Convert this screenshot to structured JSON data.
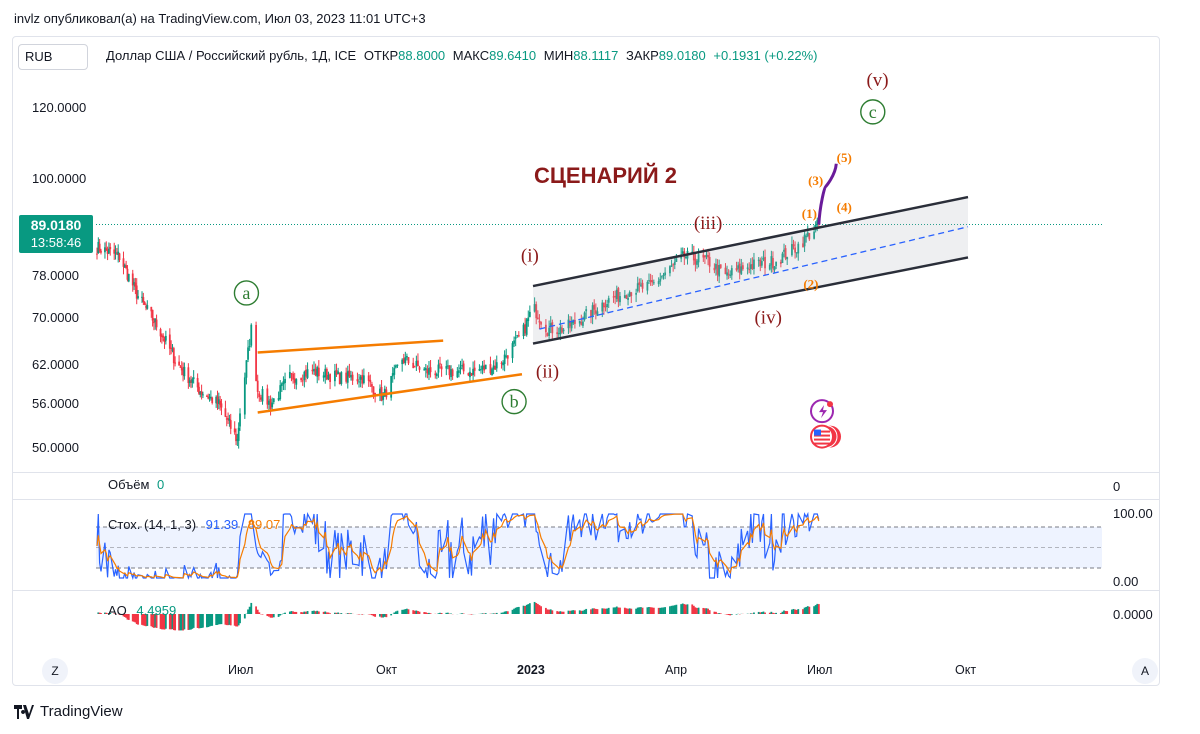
{
  "header": {
    "publisher_line": "invlz опубликовал(а) на TradingView.com, Июл 03, 2023 11:01 UTC+3"
  },
  "symbol_button": "RUB",
  "legend": {
    "title": "Доллар США / Российский рубль, 1Д, ICE",
    "open_label": "ОТКР",
    "open": "88.8000",
    "high_label": "МАКС",
    "high": "89.6410",
    "low_label": "МИН",
    "low": "88.1117",
    "close_label": "ЗАКР",
    "close": "89.0180",
    "change": "+0.1931 (+0.22%)"
  },
  "price_badge": {
    "price": "89.0180",
    "countdown": "13:58:46"
  },
  "colors": {
    "up": "#089981",
    "down": "#f23645",
    "wave_dark": "#8b1a1a",
    "wave_green": "#2e7d32",
    "orange": "#f57c00",
    "purple": "#6a1b9a",
    "channel": "#2a2e39",
    "midline": "#2962ff"
  },
  "annotations": {
    "scenario": "СЦЕНАРИЙ 2",
    "wave_a": "a",
    "wave_b": "b",
    "wave_c": "c",
    "wave_i": "(i)",
    "wave_ii": "(ii)",
    "wave_iii": "(iii)",
    "wave_iv": "(iv)",
    "wave_v": "(v)",
    "sub_1": "(1)",
    "sub_2": "(2)",
    "sub_3": "(3)",
    "sub_4": "(4)",
    "sub_5": "(5)"
  },
  "volume_panel": {
    "label": "Объём",
    "value": "0",
    "axis_value": "0"
  },
  "stoch_panel": {
    "label": "Стох. (14, 1, 3)",
    "k": "91.39",
    "d": "89.07",
    "axis_top": "100.00",
    "axis_bottom": "0.00",
    "k_color": "#2962ff",
    "d_color": "#f57c00"
  },
  "ao_panel": {
    "label": "AO",
    "value": "4.4959",
    "axis_value": "0.0000"
  },
  "x_axis": {
    "labels": [
      "Июл",
      "Окт",
      "2023",
      "Апр",
      "Июл",
      "Окт"
    ],
    "left_button": "Z",
    "right_button": "A"
  },
  "footer": {
    "brand": "TradingView"
  },
  "chart_data": {
    "type": "candlestick",
    "title": "Доллар США / Российский рубль, 1Д, ICE",
    "y_axis_ticks": [
      120.0,
      100.0,
      78.0,
      70.0,
      62.0,
      56.0,
      50.0
    ],
    "y_axis_labels": [
      "120.0000",
      "100.0000",
      "78.0000",
      "70.0000",
      "62.0000",
      "56.0000",
      "50.0000"
    ],
    "scale": "log",
    "ylim": [
      48,
      128
    ],
    "x_range": [
      "2022-03",
      "2023-11"
    ],
    "last_close": 89.018,
    "series": [
      {
        "name": "USDRUB",
        "points": [
          [
            "2022-03-15",
            84
          ],
          [
            "2022-04-01",
            82
          ],
          [
            "2022-04-15",
            74
          ],
          [
            "2022-05-01",
            68
          ],
          [
            "2022-05-15",
            62
          ],
          [
            "2022-06-01",
            58
          ],
          [
            "2022-06-15",
            56
          ],
          [
            "2022-06-29",
            51
          ],
          [
            "2022-07-01",
            55
          ],
          [
            "2022-07-08",
            68
          ],
          [
            "2022-07-12",
            58
          ],
          [
            "2022-07-20",
            56
          ],
          [
            "2022-08-01",
            60
          ],
          [
            "2022-08-15",
            61
          ],
          [
            "2022-09-01",
            60
          ],
          [
            "2022-09-15",
            60
          ],
          [
            "2022-09-28",
            57
          ],
          [
            "2022-10-10",
            63
          ],
          [
            "2022-10-25",
            61
          ],
          [
            "2022-11-10",
            61
          ],
          [
            "2022-11-25",
            61
          ],
          [
            "2022-12-10",
            62
          ],
          [
            "2022-12-25",
            67
          ],
          [
            "2023-01-01",
            72
          ],
          [
            "2023-01-10",
            68
          ],
          [
            "2023-01-20",
            68
          ],
          [
            "2023-02-01",
            70
          ],
          [
            "2023-02-15",
            73
          ],
          [
            "2023-03-01",
            75
          ],
          [
            "2023-03-15",
            76
          ],
          [
            "2023-04-05",
            82
          ],
          [
            "2023-04-20",
            81
          ],
          [
            "2023-05-01",
            78
          ],
          [
            "2023-05-15",
            80
          ],
          [
            "2023-06-01",
            81
          ],
          [
            "2023-06-15",
            84
          ],
          [
            "2023-06-29",
            89.018
          ]
        ]
      }
    ],
    "ao_last": 4.4959,
    "stoch_last": {
      "k": 91.39,
      "d": 89.07
    }
  }
}
